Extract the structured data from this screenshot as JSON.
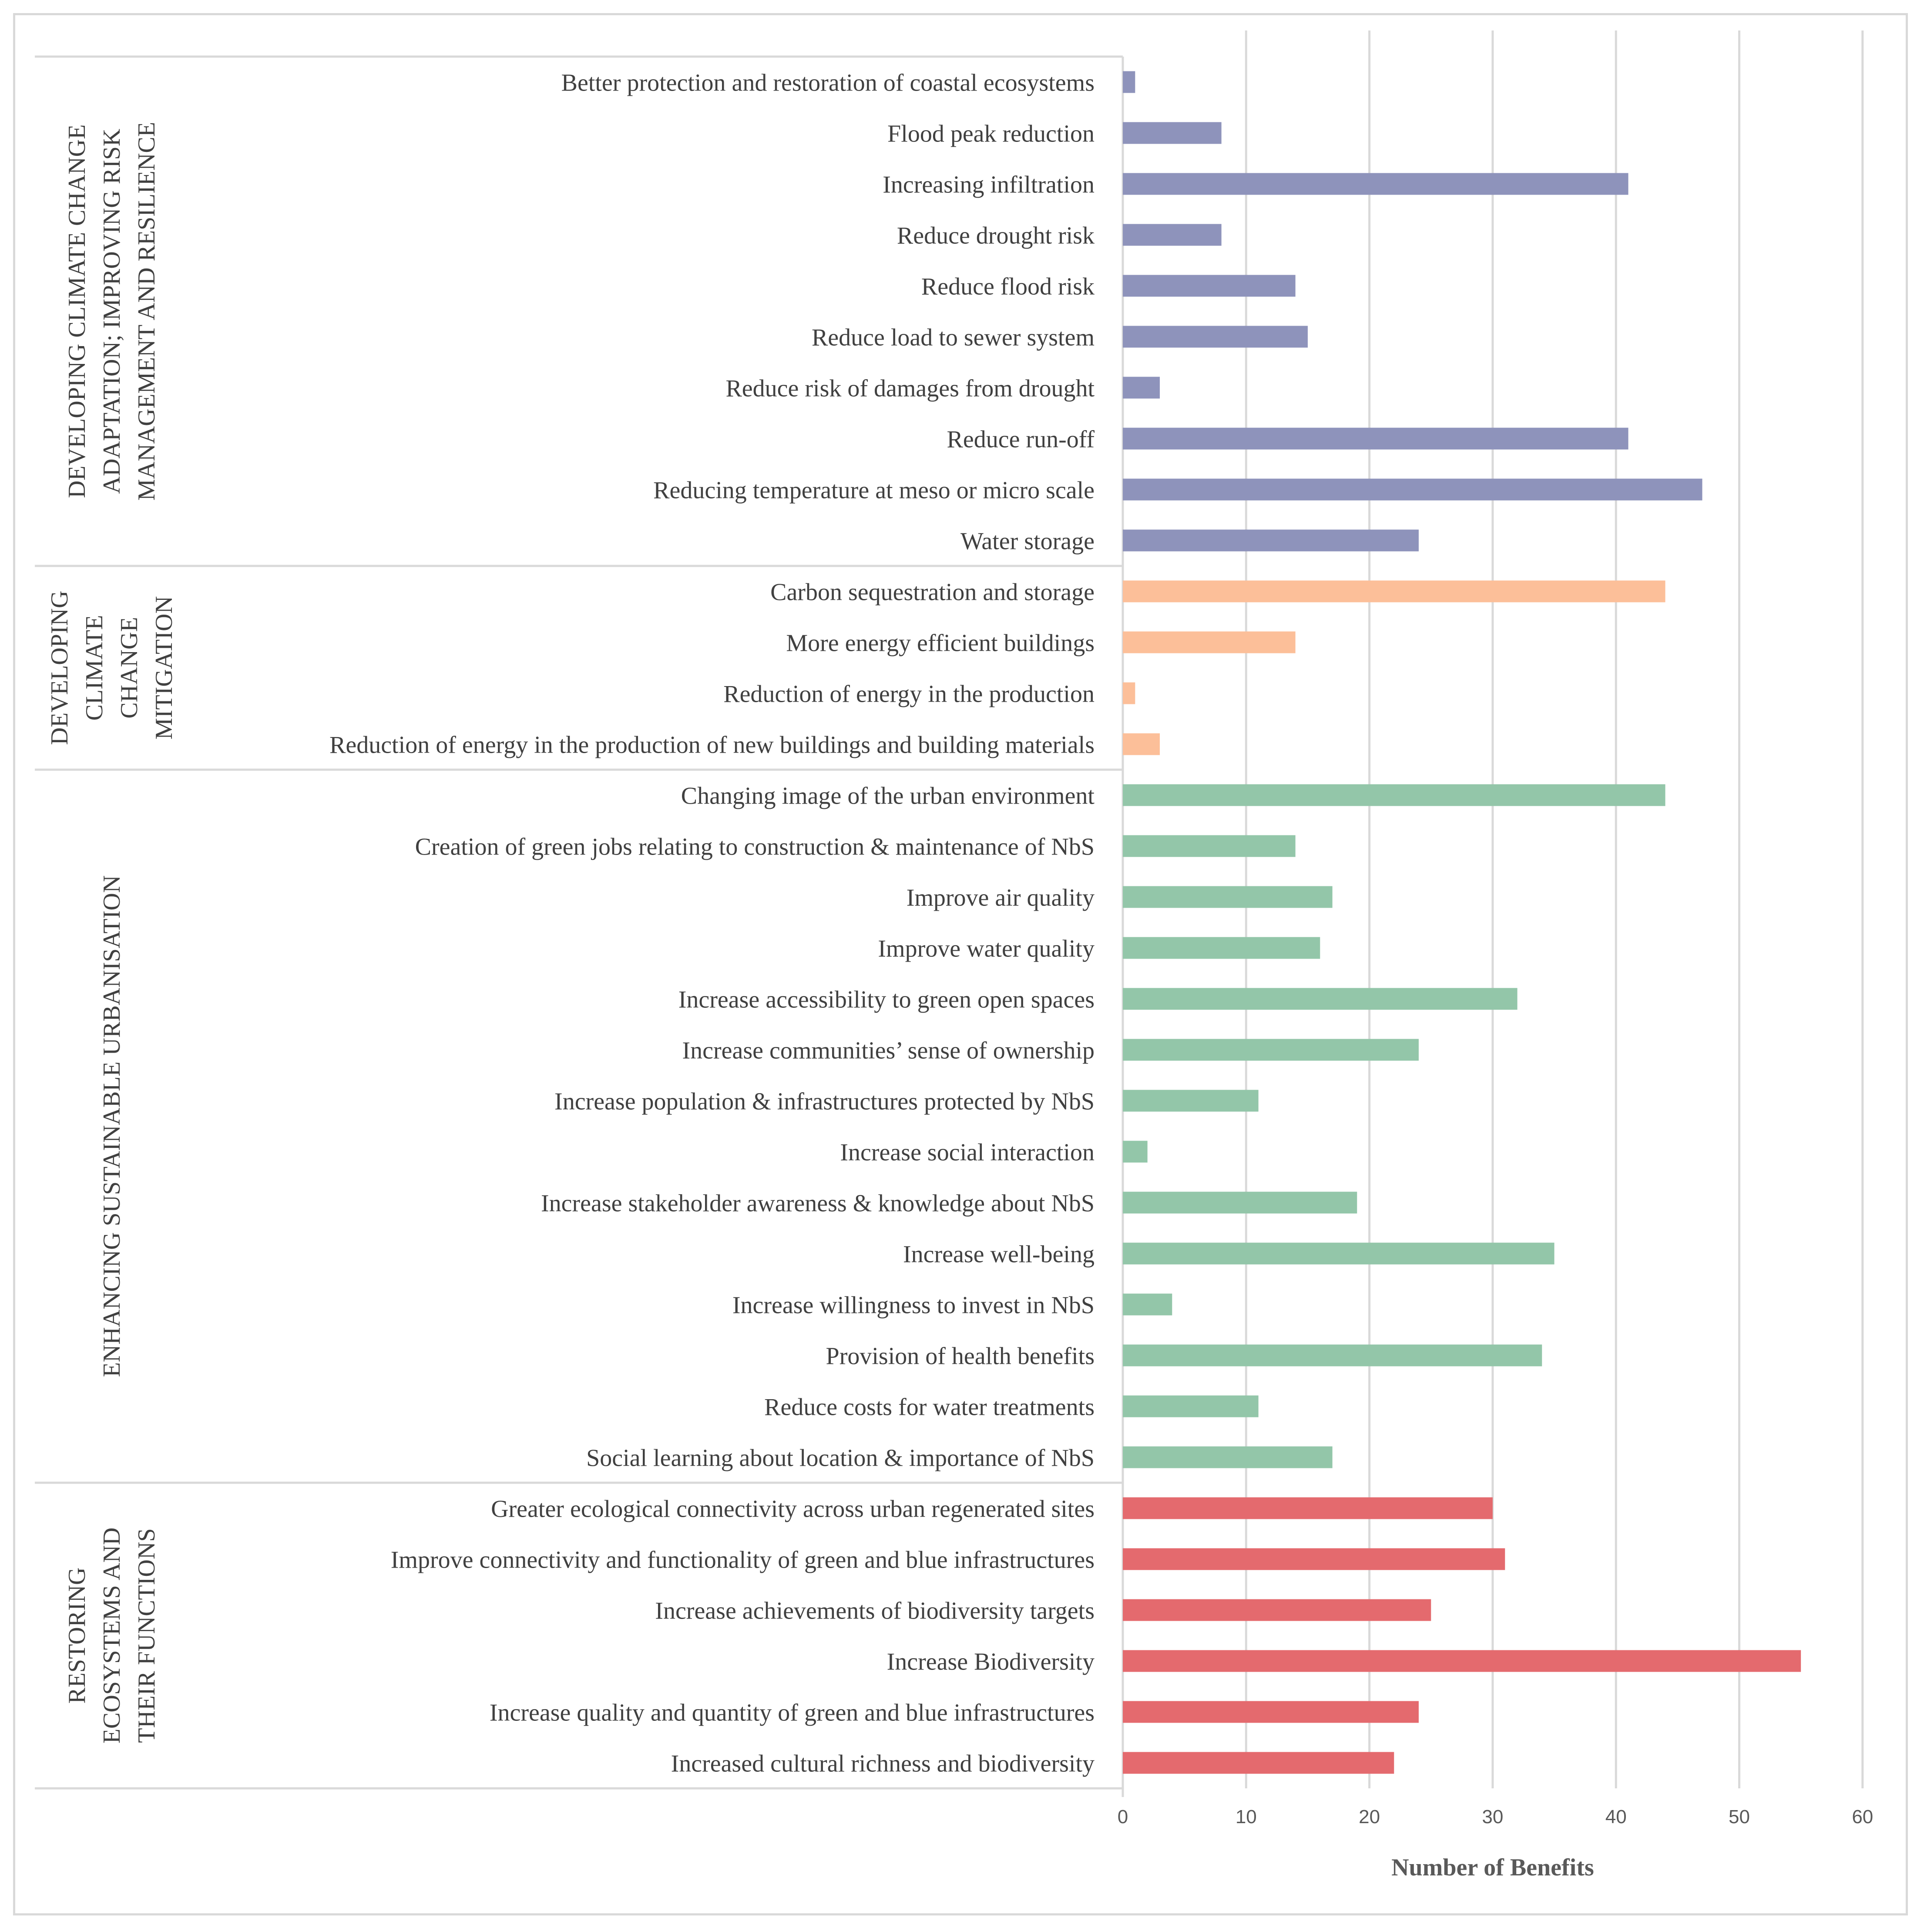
{
  "chart_data": {
    "type": "bar",
    "orientation": "horizontal",
    "xlabel": "Number of Benefits",
    "xlim": [
      0,
      60
    ],
    "x_ticks": [
      0,
      10,
      20,
      30,
      40,
      50,
      60
    ],
    "grid": true,
    "groups": [
      {
        "name": "DEVELOPING CLIMATE CHANGE ADAPTATION; IMPROVING RISK MANAGEMENT AND RESILIENCE",
        "label_lines": [
          "DEVELOPING CLIMATE CHANGE",
          "ADAPTATION; IMPROVING RISK",
          "MANAGEMENT AND RESILIENCE"
        ],
        "color": "#8e93bb",
        "categories": [
          "Better protection and restoration of coastal ecosystems",
          "Flood peak reduction",
          "Increasing infiltration",
          "Reduce drought risk",
          "Reduce flood risk",
          "Reduce load to sewer system",
          "Reduce risk of damages from drought",
          "Reduce run-off",
          "Reducing temperature at meso or micro scale",
          "Water storage"
        ],
        "values": [
          1,
          8,
          41,
          8,
          14,
          15,
          3,
          41,
          47,
          24
        ]
      },
      {
        "name": "DEVELOPING CLIMATE CHANGE MITIGATION",
        "label_lines": [
          "DEVELOPING",
          "CLIMATE",
          "CHANGE",
          "MITIGATION"
        ],
        "color": "#fcbf99",
        "categories": [
          "Carbon sequestration and storage",
          "More energy efficient buildings",
          "Reduction of energy in the production",
          "Reduction of energy in the production of new buildings and building materials"
        ],
        "values": [
          44,
          14,
          1,
          3
        ]
      },
      {
        "name": "ENHANCING SUSTAINABLE URBANISATION",
        "label_lines": [
          "ENHANCING SUSTAINABLE URBANISATION"
        ],
        "color": "#93c6a9",
        "categories": [
          "Changing image of the urban environment",
          "Creation of green jobs relating to construction & maintenance of NbS",
          "Improve air quality",
          "Improve water quality",
          "Increase accessibility to green open spaces",
          "Increase communities’ sense of ownership",
          "Increase population & infrastructures protected by NbS",
          "Increase social interaction",
          "Increase stakeholder awareness & knowledge about NbS",
          "Increase well-being",
          "Increase willingness to invest in NbS",
          "Provision of health benefits",
          "Reduce costs for water treatments",
          "Social learning about location & importance of NbS"
        ],
        "values": [
          44,
          14,
          17,
          16,
          32,
          24,
          11,
          2,
          19,
          35,
          4,
          34,
          11,
          17
        ]
      },
      {
        "name": "RESTORING ECOSYSTEMS AND THEIR FUNCTIONS",
        "label_lines": [
          "RESTORING",
          "ECOSYSTEMS AND",
          "THEIR FUNCTIONS"
        ],
        "color": "#e46a6e",
        "categories": [
          "Greater ecological connectivity across urban regenerated sites",
          "Improve connectivity and functionality of green and blue infrastructures",
          "Increase achievements of biodiversity targets",
          "Increase Biodiversity",
          "Increase quality and quantity of green and blue infrastructures",
          "Increased cultural richness and biodiversity"
        ],
        "values": [
          30,
          31,
          25,
          55,
          24,
          22
        ]
      }
    ]
  }
}
